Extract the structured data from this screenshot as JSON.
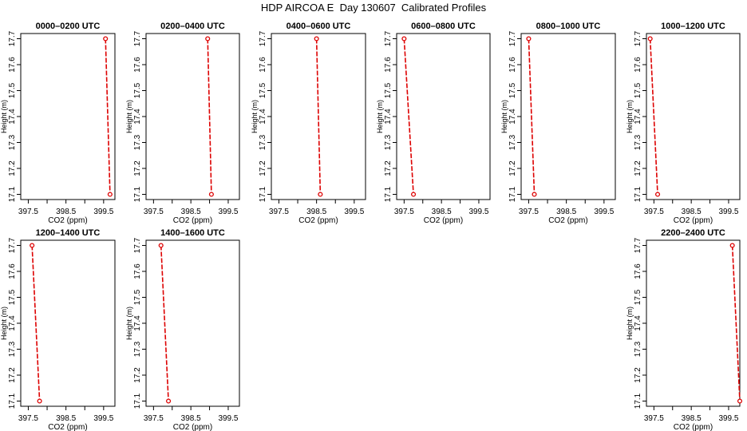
{
  "title": "HDP AIRCOA E  Day 130607  Calibrated Profiles",
  "colors": {
    "series": "#dd0000",
    "axes": "#000000"
  },
  "chart_data": [
    {
      "type": "line",
      "title": "0000–0200 UTC",
      "xlabel": "CO2 (ppm)",
      "ylabel": "Height (m)",
      "xlim": [
        397.3,
        399.8
      ],
      "ylim": [
        17.08,
        17.72
      ],
      "xticks": [
        "397.5",
        "398.5",
        "399.5"
      ],
      "yticks": [
        "17.1",
        "17.2",
        "17.3",
        "17.4",
        "17.5",
        "17.6",
        "17.7"
      ],
      "x": [
        399.55,
        399.67
      ],
      "y": [
        17.7,
        17.1
      ]
    },
    {
      "type": "line",
      "title": "0200–0400 UTC",
      "xlabel": "CO2 (ppm)",
      "ylabel": "Height (m)",
      "xlim": [
        397.3,
        399.8
      ],
      "ylim": [
        17.08,
        17.72
      ],
      "xticks": [
        "397.5",
        "398.5",
        "399.5"
      ],
      "yticks": [
        "17.1",
        "17.2",
        "17.3",
        "17.4",
        "17.5",
        "17.6",
        "17.7"
      ],
      "x": [
        398.95,
        399.05
      ],
      "y": [
        17.7,
        17.1
      ]
    },
    {
      "type": "line",
      "title": "0400–0600 UTC",
      "xlabel": "CO2 (ppm)",
      "ylabel": "Height (m)",
      "xlim": [
        397.3,
        399.8
      ],
      "ylim": [
        17.08,
        17.72
      ],
      "xticks": [
        "397.5",
        "398.5",
        "399.5"
      ],
      "yticks": [
        "17.1",
        "17.2",
        "17.3",
        "17.4",
        "17.5",
        "17.6",
        "17.7"
      ],
      "x": [
        398.5,
        398.6
      ],
      "y": [
        17.7,
        17.1
      ]
    },
    {
      "type": "line",
      "title": "0600–0800 UTC",
      "xlabel": "CO2 (ppm)",
      "ylabel": "Height (m)",
      "xlim": [
        397.3,
        399.8
      ],
      "ylim": [
        17.08,
        17.72
      ],
      "xticks": [
        "397.5",
        "398.5",
        "399.5"
      ],
      "yticks": [
        "17.1",
        "17.2",
        "17.3",
        "17.4",
        "17.5",
        "17.6",
        "17.7"
      ],
      "x": [
        397.5,
        397.75
      ],
      "y": [
        17.7,
        17.1
      ]
    },
    {
      "type": "line",
      "title": "0800–1000 UTC",
      "xlabel": "CO2 (ppm)",
      "ylabel": "Height (m)",
      "xlim": [
        397.3,
        399.8
      ],
      "ylim": [
        17.08,
        17.72
      ],
      "xticks": [
        "397.5",
        "398.5",
        "399.5"
      ],
      "yticks": [
        "17.1",
        "17.2",
        "17.3",
        "17.4",
        "17.5",
        "17.6",
        "17.7"
      ],
      "x": [
        397.5,
        397.65
      ],
      "y": [
        17.7,
        17.1
      ]
    },
    {
      "type": "line",
      "title": "1000–1200 UTC",
      "xlabel": "CO2 (ppm)",
      "ylabel": "Height (m)",
      "xlim": [
        397.3,
        399.8
      ],
      "ylim": [
        17.08,
        17.72
      ],
      "xticks": [
        "397.5",
        "398.5",
        "399.5"
      ],
      "yticks": [
        "17.1",
        "17.2",
        "17.3",
        "17.4",
        "17.5",
        "17.6",
        "17.7"
      ],
      "x": [
        397.4,
        397.6
      ],
      "y": [
        17.7,
        17.1
      ]
    },
    {
      "type": "line",
      "title": "1200–1400 UTC",
      "xlabel": "CO2 (ppm)",
      "ylabel": "Height (m)",
      "xlim": [
        397.3,
        399.8
      ],
      "ylim": [
        17.08,
        17.72
      ],
      "xticks": [
        "397.5",
        "398.5",
        "399.5"
      ],
      "yticks": [
        "17.1",
        "17.2",
        "17.3",
        "17.4",
        "17.5",
        "17.6",
        "17.7"
      ],
      "x": [
        397.6,
        397.8
      ],
      "y": [
        17.7,
        17.1
      ]
    },
    {
      "type": "line",
      "title": "1400–1600 UTC",
      "xlabel": "CO2 (ppm)",
      "ylabel": "Height (m)",
      "xlim": [
        397.3,
        399.8
      ],
      "ylim": [
        17.08,
        17.72
      ],
      "xticks": [
        "397.5",
        "398.5",
        "399.5"
      ],
      "yticks": [
        "17.1",
        "17.2",
        "17.3",
        "17.4",
        "17.5",
        "17.6",
        "17.7"
      ],
      "x": [
        397.7,
        397.9
      ],
      "y": [
        17.7,
        17.1
      ]
    },
    {
      "type": "line",
      "title": "2200–2400 UTC",
      "xlabel": "CO2 (ppm)",
      "ylabel": "Height (m)",
      "xlim": [
        397.3,
        399.8
      ],
      "ylim": [
        17.08,
        17.72
      ],
      "xticks": [
        "397.5",
        "398.5",
        "399.5"
      ],
      "yticks": [
        "17.1",
        "17.2",
        "17.3",
        "17.4",
        "17.5",
        "17.6",
        "17.7"
      ],
      "x": [
        399.6,
        399.8
      ],
      "y": [
        17.7,
        17.1
      ]
    }
  ]
}
